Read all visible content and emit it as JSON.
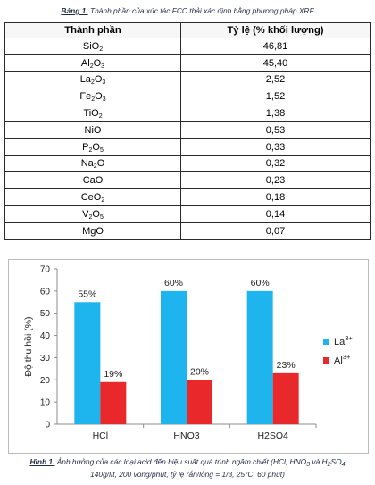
{
  "table": {
    "caption_lead": "Bảng 1.",
    "caption_text": " Thành phần của xúc tác FCC thải xác định bằng phương pháp XRF",
    "headers": [
      "Thành phần",
      "Tỷ lệ (% khối lượng)"
    ],
    "rows": [
      {
        "component": "SiO<sub>2</sub>",
        "value": "46,81"
      },
      {
        "component": "Al<sub>2</sub>O<sub>3</sub>",
        "value": "45,40"
      },
      {
        "component": "La<sub>2</sub>O<sub>3</sub>",
        "value": "2,52"
      },
      {
        "component": "Fe<sub>2</sub>O<sub>3</sub>",
        "value": "1,52"
      },
      {
        "component": "TiO<sub>2</sub>",
        "value": "1,38"
      },
      {
        "component": "NiO",
        "value": "0,53"
      },
      {
        "component": "P<sub>2</sub>O<sub>5</sub>",
        "value": "0,33"
      },
      {
        "component": "Na<sub>2</sub>O",
        "value": "0,32"
      },
      {
        "component": "CaO",
        "value": "0,23"
      },
      {
        "component": "CeO<sub>2</sub>",
        "value": "0,18"
      },
      {
        "component": "V<sub>2</sub>O<sub>5</sub>",
        "value": "0,14"
      },
      {
        "component": "MgO",
        "value": "0,07"
      }
    ]
  },
  "figure": {
    "caption_lead": "Hình 1.",
    "caption_line1": " Ảnh hưởng của các loại acid đến hiệu suất quá trình ngâm chiết (HCl, HNO<sub>3</sub> và H<sub>2</sub>SO<sub>4</sub>",
    "caption_line2": "140g/lít, 200 vòng/phút, tỷ lệ rắn/lỏng = 1/3, 25°C, 60 phút)"
  },
  "chart_data": {
    "type": "bar",
    "categories": [
      "HCl",
      "HNO3",
      "H2SO4"
    ],
    "series": [
      {
        "name": "La3+",
        "values": [
          55,
          60,
          60
        ],
        "labels": [
          "55%",
          "60%",
          "60%"
        ],
        "color": "#1eb5ef"
      },
      {
        "name": "Al3+",
        "values": [
          19,
          20,
          23
        ],
        "labels": [
          "19%",
          "20%",
          "23%"
        ],
        "color": "#e8282b"
      }
    ],
    "ylabel": "Độ thu hồi (%)",
    "ylim": [
      0,
      70
    ],
    "yticks": [
      "0",
      "10",
      "20",
      "30",
      "40",
      "50",
      "60",
      "70"
    ],
    "grid": false,
    "legend": "right"
  }
}
